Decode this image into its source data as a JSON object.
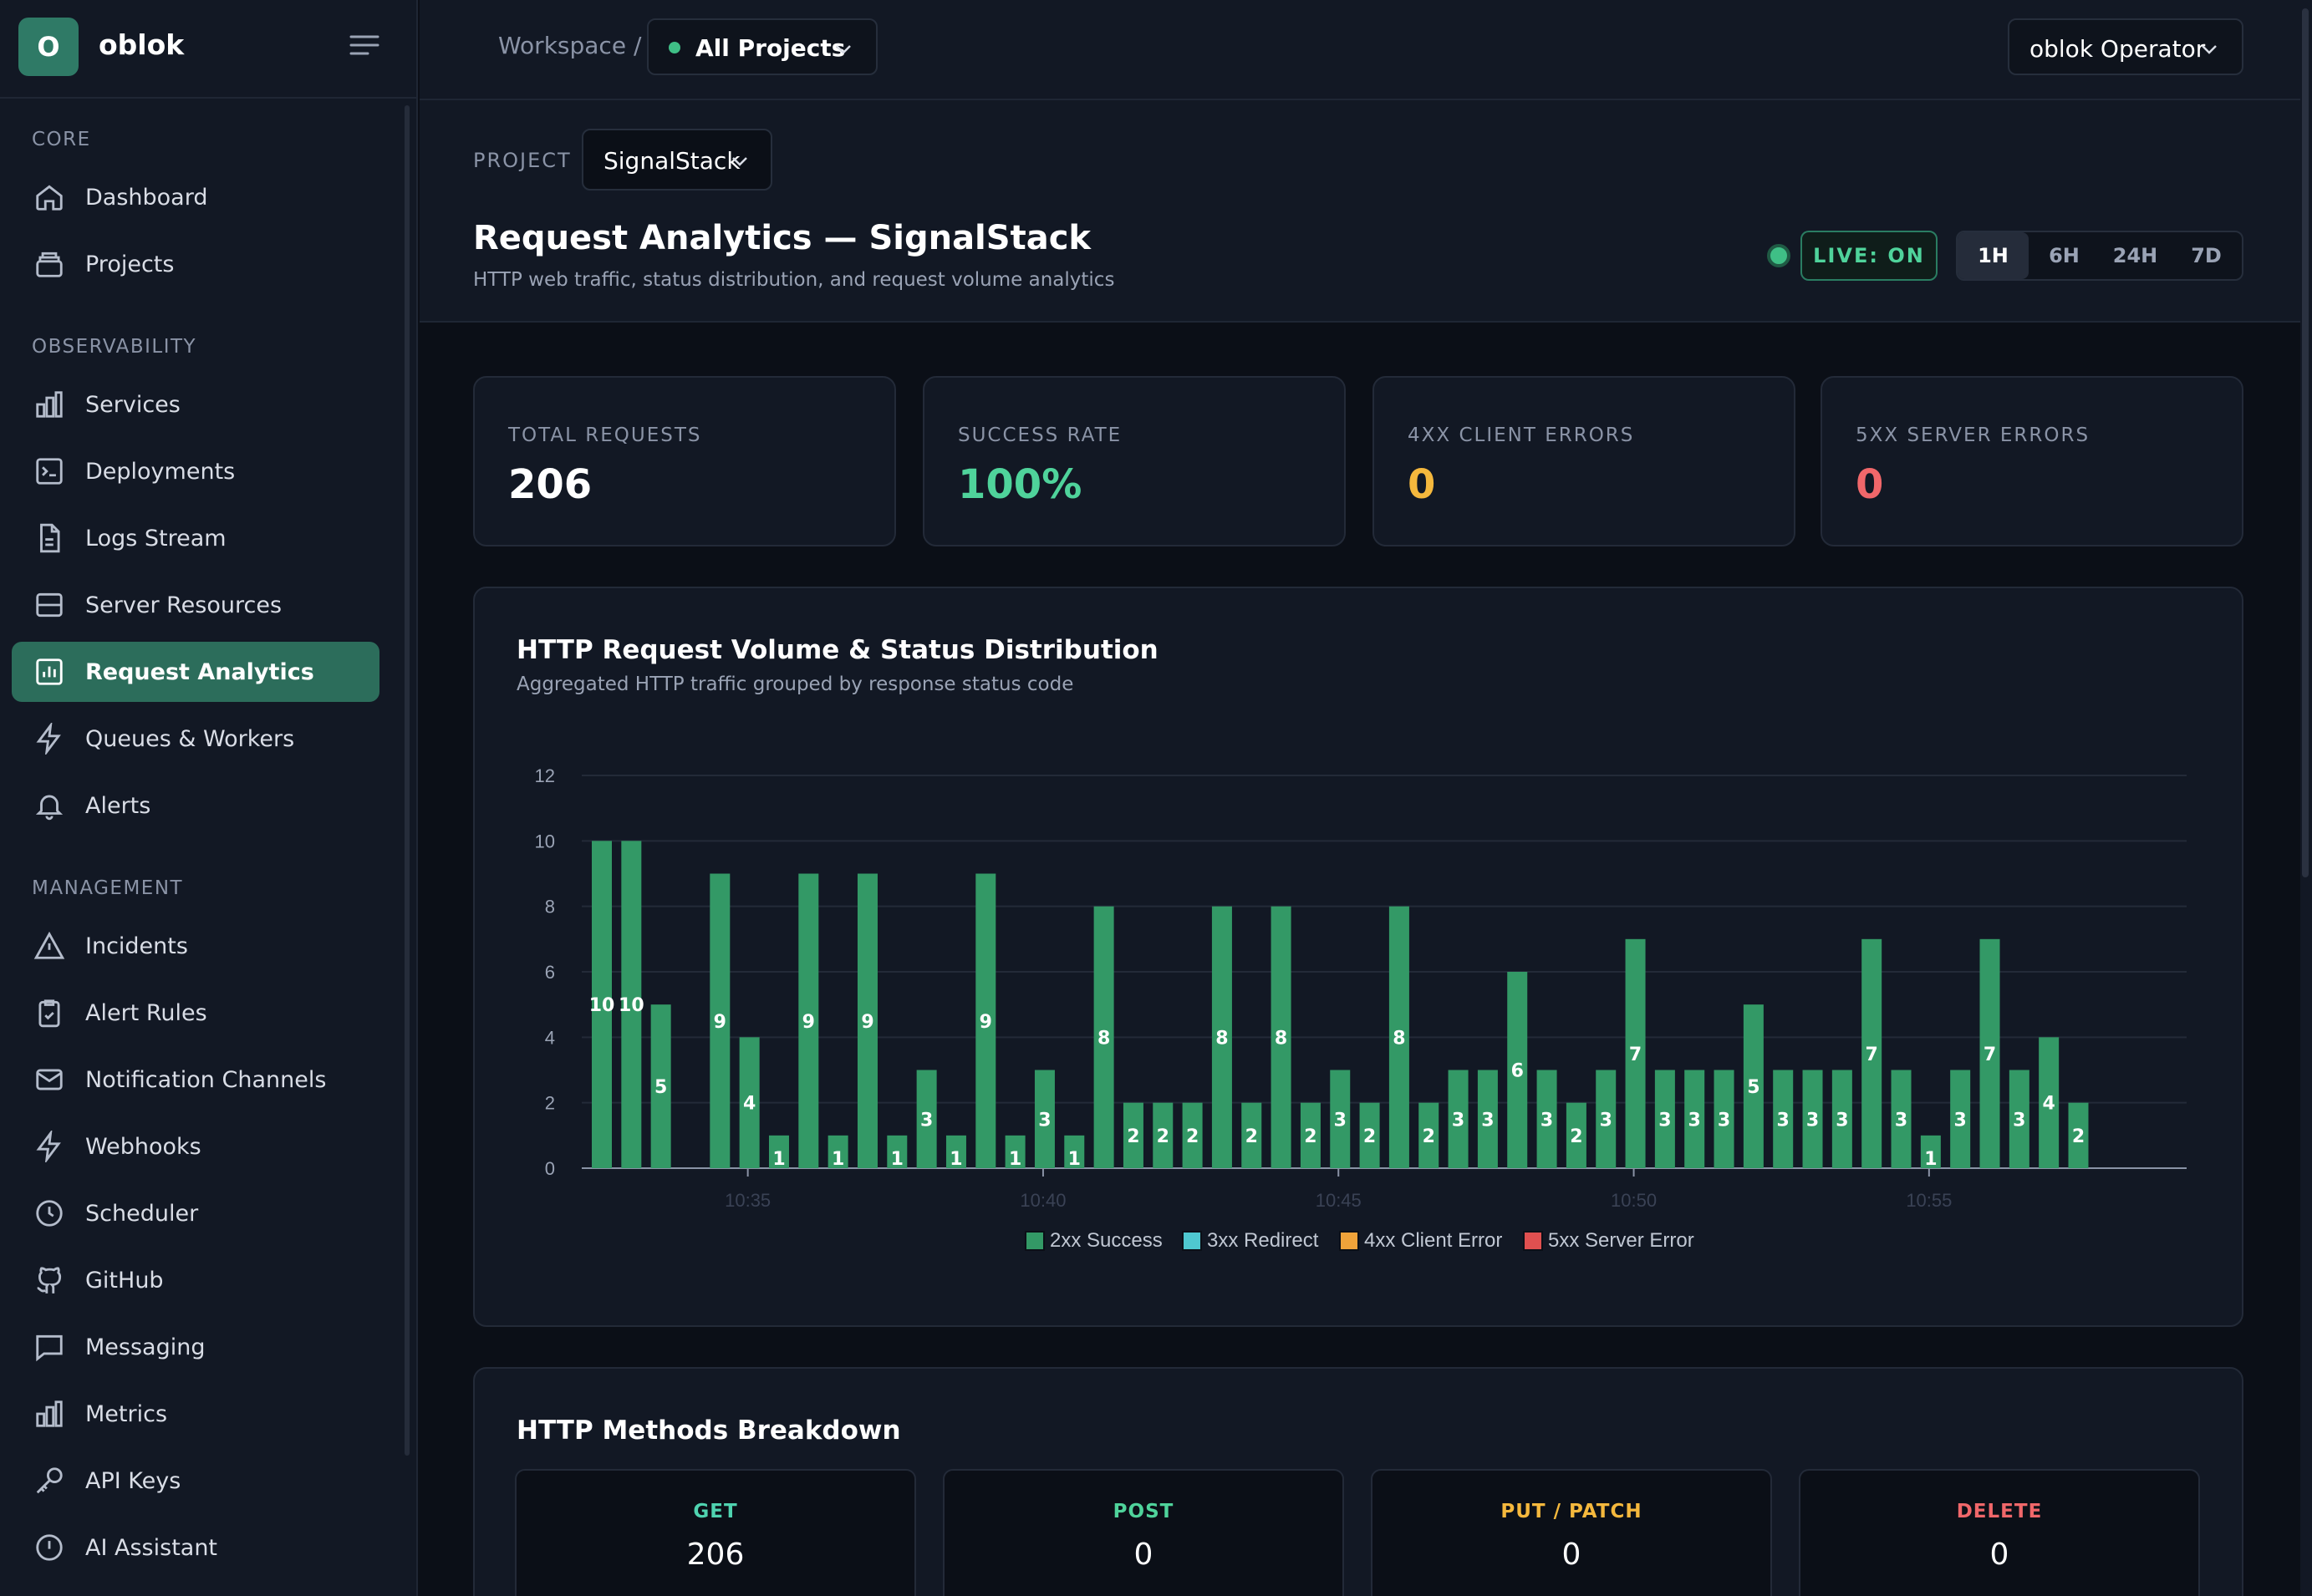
{
  "brand": {
    "logo_letter": "O",
    "name": "oblok"
  },
  "sidebar": {
    "sections": [
      {
        "title": "CORE",
        "items": [
          {
            "label": "Dashboard",
            "icon": "home-icon"
          },
          {
            "label": "Projects",
            "icon": "box-icon"
          }
        ]
      },
      {
        "title": "OBSERVABILITY",
        "items": [
          {
            "label": "Services",
            "icon": "bar-chart-icon"
          },
          {
            "label": "Deployments",
            "icon": "terminal-icon"
          },
          {
            "label": "Logs Stream",
            "icon": "file-text-icon"
          },
          {
            "label": "Server Resources",
            "icon": "server-icon"
          },
          {
            "label": "Request Analytics",
            "icon": "analytics-icon",
            "active": true
          },
          {
            "label": "Queues & Workers",
            "icon": "bolt-icon"
          },
          {
            "label": "Alerts",
            "icon": "bell-icon"
          }
        ]
      },
      {
        "title": "MANAGEMENT",
        "items": [
          {
            "label": "Incidents",
            "icon": "warning-icon"
          },
          {
            "label": "Alert Rules",
            "icon": "clipboard-icon"
          },
          {
            "label": "Notification Channels",
            "icon": "mail-icon"
          },
          {
            "label": "Webhooks",
            "icon": "bolt-icon"
          },
          {
            "label": "Scheduler",
            "icon": "clock-icon"
          },
          {
            "label": "GitHub",
            "icon": "github-icon"
          },
          {
            "label": "Messaging",
            "icon": "message-icon"
          },
          {
            "label": "Metrics",
            "icon": "bar-chart-icon"
          },
          {
            "label": "API Keys",
            "icon": "key-icon"
          },
          {
            "label": "AI Assistant",
            "icon": "info-icon"
          }
        ]
      }
    ]
  },
  "header": {
    "breadcrumb": "Workspace /",
    "project_select": "All Projects",
    "user": "oblok Operator"
  },
  "subheader": {
    "project_label": "PROJECT",
    "project_value": "SignalStack",
    "title": "Request Analytics — SignalStack",
    "subtitle": "HTTP web traffic, status distribution, and request volume analytics",
    "live": "LIVE: ON",
    "ranges": [
      "1H",
      "6H",
      "24H",
      "7D"
    ],
    "active_range": "1H"
  },
  "stats": [
    {
      "label": "TOTAL REQUESTS",
      "value": "206",
      "color": "#ffffff"
    },
    {
      "label": "SUCCESS RATE",
      "value": "100%",
      "color": "#4fd39b"
    },
    {
      "label": "4XX CLIENT ERRORS",
      "value": "0",
      "color": "#f5b83d"
    },
    {
      "label": "5XX SERVER ERRORS",
      "value": "0",
      "color": "#f0676a"
    }
  ],
  "chart": {
    "title": "HTTP Request Volume & Status Distribution",
    "subtitle": "Aggregated HTTP traffic grouped by response status code"
  },
  "chart_data": {
    "type": "bar",
    "stacked": true,
    "ylim": [
      0,
      12
    ],
    "yticks": [
      0,
      2,
      4,
      6,
      8,
      10,
      12
    ],
    "x_tick_labels": [
      "10:35",
      "10:40",
      "10:45",
      "10:50",
      "10:55"
    ],
    "series": [
      {
        "name": "2xx Success",
        "color": "#339966",
        "values": [
          10,
          10,
          5,
          0,
          9,
          4,
          1,
          9,
          1,
          9,
          1,
          3,
          1,
          9,
          1,
          3,
          1,
          8,
          2,
          2,
          2,
          8,
          2,
          8,
          2,
          3,
          2,
          8,
          2,
          3,
          3,
          6,
          3,
          2,
          3,
          7,
          3,
          3,
          3,
          5,
          3,
          3,
          3,
          7,
          3,
          1,
          3,
          7,
          3,
          4,
          2
        ]
      },
      {
        "name": "3xx Redirect",
        "color": "#4fc8d0",
        "values": []
      },
      {
        "name": "4xx Client Error",
        "color": "#f0a33a",
        "values": []
      },
      {
        "name": "5xx Server Error",
        "color": "#e05050",
        "values": []
      }
    ],
    "grid": true,
    "legend": "bottom"
  },
  "methods": {
    "title": "HTTP Methods Breakdown",
    "items": [
      {
        "name": "GET",
        "count": "206",
        "color": "#4fd3b0"
      },
      {
        "name": "POST",
        "count": "0",
        "color": "#4fd39b"
      },
      {
        "name": "PUT / PATCH",
        "count": "0",
        "color": "#f5b83d"
      },
      {
        "name": "DELETE",
        "count": "0",
        "color": "#f0676a"
      }
    ]
  }
}
